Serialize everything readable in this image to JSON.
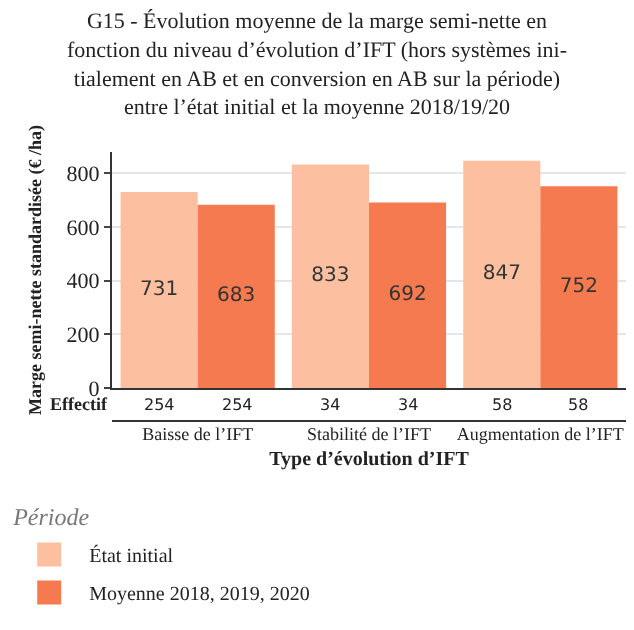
{
  "chart_data": {
    "type": "bar",
    "title": "G15 - Évolution moyenne de la marge semi-nette en\nfonction du niveau d’évolution d’IFT (hors systèmes ini-\ntialement en AB et en conversion en AB sur la période)\nentre l’état initial et la moyenne 2018/19/20",
    "xlabel": "Type d’évolution d’IFT",
    "ylabel": "Marge semi-nette standardisée (€ /ha)",
    "legend_title": "Période",
    "categories": [
      "Baisse de l’IFT",
      "Stabilité de l’IFT",
      "Augmentation de l’IFT"
    ],
    "series": [
      {
        "name": "État initial",
        "color": "#fcc0a1",
        "values": [
          731,
          833,
          847
        ]
      },
      {
        "name": "Moyenne 2018, 2019, 2020",
        "color": "#f57a4f",
        "values": [
          683,
          692,
          752
        ]
      }
    ],
    "annotations": [
      "Effectif",
      "254",
      "254",
      "34",
      "34",
      "58",
      "58"
    ],
    "ylim": [
      0,
      880
    ],
    "yticks": [
      0,
      200,
      400,
      600,
      800
    ],
    "grid": "y",
    "legend": "bottom",
    "data_labels": true
  }
}
